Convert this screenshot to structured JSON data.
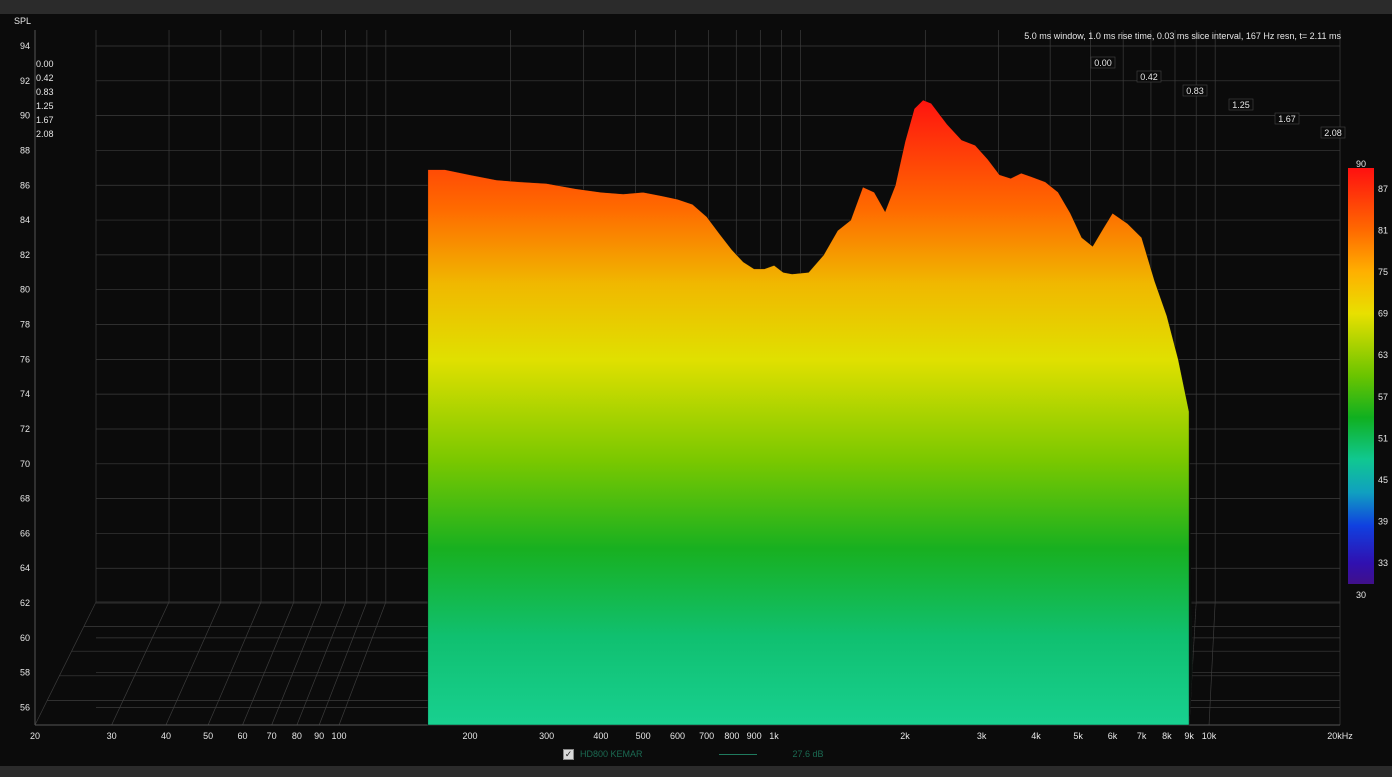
{
  "chart_data": {
    "type": "waterfall",
    "info": "5.0 ms window, 1.0 ms rise time, 0.03 ms slice interval, 167 Hz resn, t= 2.11 ms",
    "ylabel": "SPL",
    "yticks": [
      "94",
      "92",
      "90",
      "88",
      "86",
      "84",
      "82",
      "80",
      "78",
      "76",
      "74",
      "72",
      "70",
      "68",
      "66",
      "64",
      "62",
      "60",
      "58",
      "56"
    ],
    "ylim": [
      55,
      95
    ],
    "xticks": [
      "20",
      "30",
      "40",
      "50",
      "60",
      "70",
      "80",
      "90",
      "100",
      "200",
      "300",
      "400",
      "500",
      "600",
      "700",
      "800",
      "900",
      "1k",
      "2k",
      "3k",
      "4k",
      "5k",
      "6k",
      "7k",
      "8k",
      "9k",
      "10k",
      "20kHz"
    ],
    "xtick_hz": [
      20,
      30,
      40,
      50,
      60,
      70,
      80,
      90,
      100,
      200,
      300,
      400,
      500,
      600,
      700,
      800,
      900,
      1000,
      2000,
      3000,
      4000,
      5000,
      6000,
      7000,
      8000,
      9000,
      10000,
      20000
    ],
    "time_ticks": [
      "0.00",
      "0.42",
      "0.83",
      "1.25",
      "1.67",
      "2.08"
    ],
    "colorbar_ticks": [
      "90",
      "87",
      "81",
      "75",
      "69",
      "63",
      "57",
      "51",
      "45",
      "39",
      "33",
      "30"
    ],
    "colorbar_range": [
      30,
      90
    ],
    "front_slice": {
      "freq_hz": [
        160,
        175,
        200,
        230,
        260,
        300,
        350,
        400,
        450,
        500,
        550,
        600,
        650,
        700,
        750,
        800,
        850,
        900,
        950,
        1000,
        1050,
        1100,
        1200,
        1300,
        1400,
        1500,
        1600,
        1700,
        1800,
        1900,
        2000,
        2100,
        2200,
        2300,
        2500,
        2700,
        2900,
        3100,
        3300,
        3500,
        3700,
        3900,
        4200,
        4500,
        4800,
        5100,
        5400,
        5700,
        6000,
        6500,
        7000,
        7500,
        8000,
        8500,
        9000
      ],
      "spl_db": [
        86.9,
        86.9,
        86.6,
        86.3,
        86.2,
        86.1,
        85.8,
        85.6,
        85.5,
        85.6,
        85.4,
        85.2,
        84.9,
        84.2,
        83.2,
        82.3,
        81.6,
        81.2,
        81.2,
        81.4,
        81.0,
        80.9,
        81.0,
        82.0,
        83.4,
        84.0,
        85.9,
        85.6,
        84.5,
        86.0,
        88.5,
        90.4,
        90.9,
        90.7,
        89.5,
        88.6,
        88.3,
        87.5,
        86.6,
        86.4,
        86.7,
        86.5,
        86.2,
        85.6,
        84.4,
        83.0,
        82.5,
        83.5,
        84.4,
        83.8,
        83.0,
        80.5,
        78.5,
        76.0,
        73.0
      ]
    },
    "legend": {
      "series": "HD800 KEMAR",
      "checked": true,
      "value": "27.6 dB"
    }
  }
}
